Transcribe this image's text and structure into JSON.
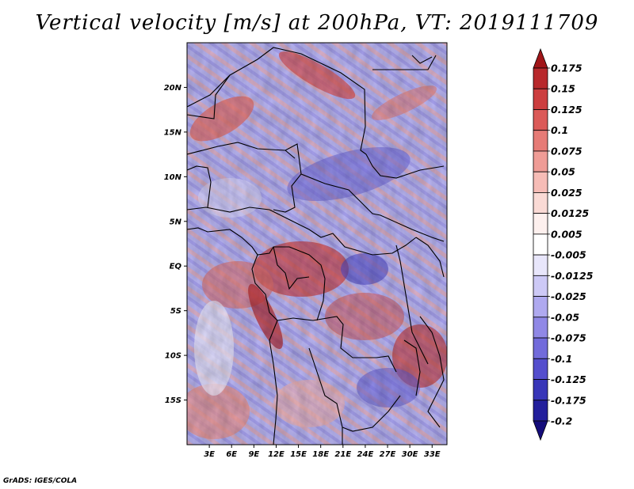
{
  "title": "Vertical velocity [m/s] at 200hPa, VT: 2019111709",
  "credit": "GrADS: IGES/COLA",
  "map": {
    "lon_range": [
      0,
      35
    ],
    "lat_range": [
      -20,
      25
    ],
    "x_ticks": [
      "3E",
      "6E",
      "9E",
      "12E",
      "15E",
      "18E",
      "21E",
      "24E",
      "27E",
      "30E",
      "33E"
    ],
    "y_ticks": [
      "20N",
      "15N",
      "10N",
      "5N",
      "EQ",
      "5S",
      "10S",
      "15S"
    ]
  },
  "colorbar": {
    "levels": [
      "0.175",
      "0.15",
      "0.125",
      "0.1",
      "0.075",
      "0.05",
      "0.025",
      "0.0125",
      "0.005",
      "-0.005",
      "-0.0125",
      "-0.025",
      "-0.05",
      "-0.075",
      "-0.1",
      "-0.125",
      "-0.175",
      "-0.2"
    ],
    "colors": [
      "#a01518",
      "#b8292c",
      "#cc3e3f",
      "#db5a58",
      "#e67b76",
      "#ef9c96",
      "#f6bcb6",
      "#fadad5",
      "#fdf0ee",
      "#ffffff",
      "#e8e6fb",
      "#cdc9f6",
      "#afa9ef",
      "#9088e6",
      "#726bdb",
      "#544ecd",
      "#3836b8",
      "#231f9c",
      "#140c7a"
    ]
  }
}
